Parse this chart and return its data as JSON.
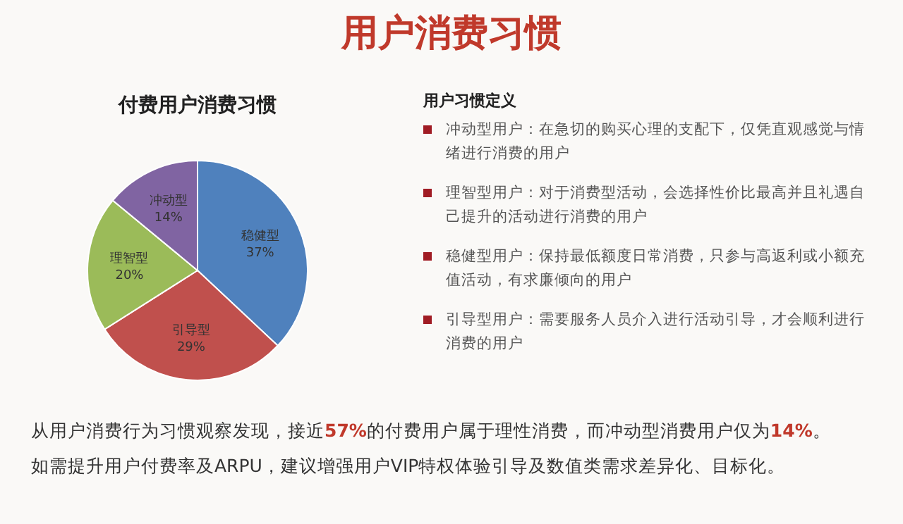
{
  "chart_data": {
    "type": "pie",
    "title": "用户消费习惯",
    "subtitle": "付费用户消费习惯",
    "categories": [
      "稳健型",
      "引导型",
      "理智型",
      "冲动型"
    ],
    "values": [
      37,
      29,
      20,
      14
    ],
    "colors": [
      "#4f81bd",
      "#c0504d",
      "#9bbb59",
      "#8064a2"
    ],
    "value_labels": [
      "37%",
      "29%",
      "20%",
      "14%"
    ],
    "legend": false,
    "annotations": [
      "用户习惯定义",
      "冲动型用户：在急切的购买心理的支配下，仅凭直观感觉与情绪进行消费的用户",
      "理智型用户：对于消费型活动，会选择性价比最高并且礼遇自己提升的活动进行消费的用户",
      "稳健型用户：保持最低额度日常消费，只参与高返利或小额充值活动，有求廉倾向的用户",
      "引导型用户：需要服务人员介入进行活动引导，才会顺利进行消费的用户",
      "从用户消费行为习惯观察发现，接近57%的付费用户属于理性消费，而冲动型消费用户仅为14%。",
      "如需提升用户付费率及ARPU，建议增强用户VIP特权体验引导及数值类需求差异化、目标化。"
    ]
  }
}
